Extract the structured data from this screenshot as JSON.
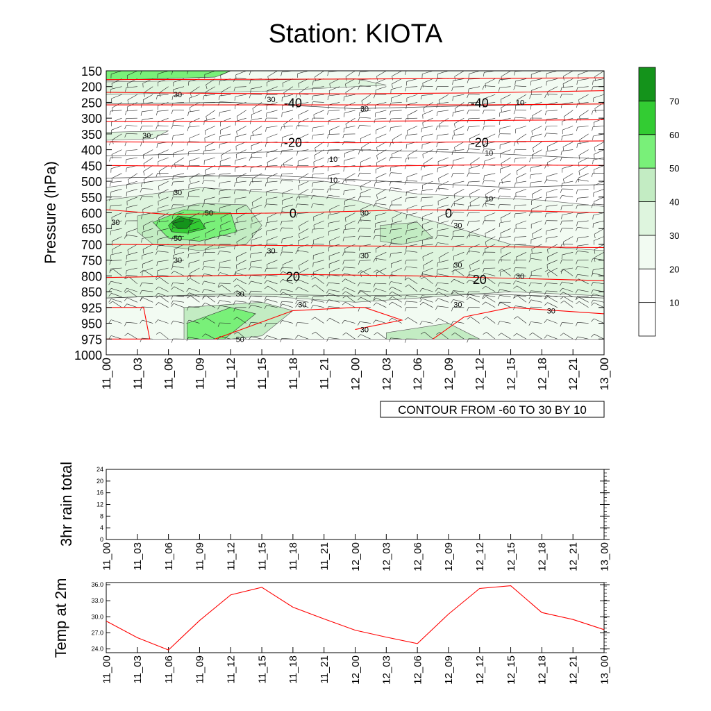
{
  "title": "Station: KIOTA",
  "colors": {
    "isotherm": "#ff0000",
    "rh_line": "#333333",
    "shade_20": "#f2fbf2",
    "shade_30": "#def5de",
    "shade_40": "#c3ecc3",
    "shade_50": "#79f079",
    "shade_60": "#33cc33",
    "shade_70": "#14931b",
    "temp_series": "#ff0000"
  },
  "time_labels": [
    "11_00",
    "11_03",
    "11_06",
    "11_09",
    "11_12",
    "11_15",
    "11_18",
    "11_21",
    "12_00",
    "12_03",
    "12_06",
    "12_09",
    "12_12",
    "12_15",
    "12_18",
    "12_21",
    "13_00"
  ],
  "chart_data": [
    {
      "type": "heatmap",
      "ylabel": "Pressure (hPa)",
      "y_ticks": [
        150,
        200,
        250,
        300,
        350,
        400,
        450,
        500,
        550,
        600,
        650,
        700,
        750,
        800,
        850,
        925,
        950,
        975,
        1000
      ],
      "x": [
        "11_00",
        "11_03",
        "11_06",
        "11_09",
        "11_12",
        "11_15",
        "11_18",
        "11_21",
        "12_00",
        "12_03",
        "12_06",
        "12_09",
        "12_12",
        "12_15",
        "12_18",
        "12_21",
        "13_00"
      ],
      "contour_info": "CONTOUR FROM -60 TO 30 BY 10",
      "colorbar": {
        "levels": [
          10,
          20,
          30,
          40,
          50,
          60,
          70
        ],
        "labels": [
          "10",
          "20",
          "30",
          "40",
          "50",
          "60",
          "70"
        ]
      },
      "temperature_contour_labels": [
        {
          "text": "-40",
          "time": "11_18",
          "pressure": 250
        },
        {
          "text": "-40",
          "time": "12_12",
          "pressure": 250
        },
        {
          "text": "-20",
          "time": "11_18",
          "pressure": 375
        },
        {
          "text": "-20",
          "time": "12_12",
          "pressure": 375
        },
        {
          "text": "0",
          "time": "11_18",
          "pressure": 600
        },
        {
          "text": "0",
          "time": "12_09",
          "pressure": 600
        },
        {
          "text": "20",
          "time": "11_18",
          "pressure": 800
        },
        {
          "text": "20",
          "time": "12_12",
          "pressure": 810
        }
      ],
      "rh_contour_labels": [
        {
          "text": "30",
          "time": "11_06",
          "pressure": 225
        },
        {
          "text": "30",
          "time": "11_15",
          "pressure": 240
        },
        {
          "text": "30",
          "time": "12_00",
          "pressure": 270
        },
        {
          "text": "30",
          "time": "11_03",
          "pressure": 355
        },
        {
          "text": "10",
          "time": "12_15",
          "pressure": 250
        },
        {
          "text": "10",
          "time": "12_12",
          "pressure": 410
        },
        {
          "text": "10",
          "time": "11_21",
          "pressure": 430
        },
        {
          "text": "10",
          "time": "11_21",
          "pressure": 495
        },
        {
          "text": "10",
          "time": "12_12",
          "pressure": 555
        },
        {
          "text": "30",
          "time": "11_06",
          "pressure": 535
        },
        {
          "text": "50",
          "time": "11_09",
          "pressure": 600
        },
        {
          "text": "30",
          "time": "11_00",
          "pressure": 630
        },
        {
          "text": "50",
          "time": "11_06",
          "pressure": 680
        },
        {
          "text": "30",
          "time": "11_06",
          "pressure": 750
        },
        {
          "text": "30",
          "time": "11_15",
          "pressure": 720
        },
        {
          "text": "30",
          "time": "12_00",
          "pressure": 600
        },
        {
          "text": "30",
          "time": "12_09",
          "pressure": 640
        },
        {
          "text": "30",
          "time": "12_00",
          "pressure": 735
        },
        {
          "text": "30",
          "time": "12_09",
          "pressure": 765
        },
        {
          "text": "30",
          "time": "12_15",
          "pressure": 800
        },
        {
          "text": "30",
          "time": "11_12",
          "pressure": 860
        },
        {
          "text": "30",
          "time": "11_18",
          "pressure": 910
        },
        {
          "text": "30",
          "time": "12_09",
          "pressure": 910
        },
        {
          "text": "30",
          "time": "12_18",
          "pressure": 930
        },
        {
          "text": "30",
          "time": "12_00",
          "pressure": 960
        },
        {
          "text": "50",
          "time": "11_12",
          "pressure": 975
        }
      ]
    },
    {
      "type": "line",
      "ylabel": "3hr rain total",
      "x": [
        "11_00",
        "11_03",
        "11_06",
        "11_09",
        "11_12",
        "11_15",
        "11_18",
        "11_21",
        "12_00",
        "12_03",
        "12_06",
        "12_09",
        "12_12",
        "12_15",
        "12_18",
        "12_21",
        "13_00"
      ],
      "ylim": [
        0,
        24
      ],
      "y_ticks": [
        "0",
        "4",
        "8",
        "12",
        "16",
        "20",
        "24"
      ],
      "values": [
        0,
        0,
        0,
        0,
        0,
        0,
        0,
        0,
        0,
        0,
        0,
        0,
        0,
        0,
        0,
        0,
        0
      ]
    },
    {
      "type": "line",
      "ylabel": "Temp at 2m",
      "x": [
        "11_00",
        "11_03",
        "11_06",
        "11_09",
        "11_12",
        "11_15",
        "11_18",
        "11_21",
        "12_00",
        "12_03",
        "12_06",
        "12_09",
        "12_12",
        "12_15",
        "12_18",
        "12_21",
        "13_00"
      ],
      "ylim": [
        23.3,
        36.4
      ],
      "y_ticks": [
        "24.0",
        "27.0",
        "30.0",
        "33.0",
        "36.0"
      ],
      "values": [
        29.2,
        26.1,
        23.8,
        29.3,
        34.1,
        35.5,
        31.8,
        29.6,
        27.5,
        26.2,
        25.0,
        30.5,
        35.3,
        35.8,
        30.8,
        29.5,
        27.6
      ]
    }
  ]
}
